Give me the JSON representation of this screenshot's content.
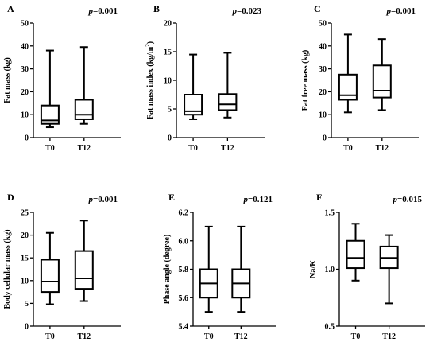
{
  "chart_data": [
    {
      "type": "box",
      "panel": "A",
      "p_prefix": "p",
      "p_value": "=0.001",
      "ylabel": "Fat mass (kg)",
      "ylim": [
        0,
        50
      ],
      "yticks": [
        0,
        10,
        20,
        30,
        40,
        50
      ],
      "ytick_labels": [
        "0",
        "10",
        "20",
        "30",
        "40",
        "50"
      ],
      "categories": [
        "T0",
        "T12"
      ],
      "boxes": [
        {
          "min": 4.5,
          "q1": 6.0,
          "median": 7.5,
          "q3": 14.0,
          "max": 38.0
        },
        {
          "min": 6.0,
          "q1": 8.0,
          "median": 10.0,
          "q3": 16.5,
          "max": 39.5
        }
      ]
    },
    {
      "type": "box",
      "panel": "B",
      "p_prefix": "p",
      "p_value": "=0.023",
      "ylabel": "Fat mass index (kg/m",
      "ylabel_sup": "2",
      "ylabel_close": ")",
      "ylim": [
        0,
        20
      ],
      "yticks": [
        0,
        5,
        10,
        15,
        20
      ],
      "ytick_labels": [
        "0",
        "5",
        "10",
        "15",
        "20"
      ],
      "categories": [
        "T0",
        "T12"
      ],
      "boxes": [
        {
          "min": 3.2,
          "q1": 4.0,
          "median": 4.6,
          "q3": 7.5,
          "max": 14.5
        },
        {
          "min": 3.5,
          "q1": 4.8,
          "median": 5.8,
          "q3": 7.6,
          "max": 14.8
        }
      ]
    },
    {
      "type": "box",
      "panel": "C",
      "p_prefix": "p",
      "p_value": "=0.001",
      "ylabel": "Fat free mass (kg)",
      "ylim": [
        0,
        50
      ],
      "yticks": [
        0,
        10,
        20,
        30,
        40,
        50
      ],
      "ytick_labels": [
        "0",
        "10",
        "20",
        "30",
        "40",
        "50"
      ],
      "categories": [
        "T0",
        "T12"
      ],
      "boxes": [
        {
          "min": 11.0,
          "q1": 16.5,
          "median": 18.5,
          "q3": 27.5,
          "max": 45.0
        },
        {
          "min": 12.0,
          "q1": 17.5,
          "median": 20.5,
          "q3": 31.5,
          "max": 43.0
        }
      ]
    },
    {
      "type": "box",
      "panel": "D",
      "p_prefix": "p",
      "p_value": "=0.001",
      "ylabel": "Body cellular mass (kg)",
      "ylim": [
        0,
        25
      ],
      "yticks": [
        0,
        5,
        10,
        15,
        20,
        25
      ],
      "ytick_labels": [
        "0",
        "5",
        "10",
        "15",
        "20",
        "25"
      ],
      "categories": [
        "T0",
        "T12"
      ],
      "boxes": [
        {
          "min": 4.8,
          "q1": 7.5,
          "median": 9.8,
          "q3": 14.6,
          "max": 20.5
        },
        {
          "min": 5.5,
          "q1": 8.2,
          "median": 10.5,
          "q3": 16.5,
          "max": 23.2
        }
      ]
    },
    {
      "type": "box",
      "panel": "E",
      "p_prefix": "p",
      "p_value": "=0.121",
      "ylabel": "Phase angle (degree)",
      "ylim": [
        5.4,
        6.2
      ],
      "yticks": [
        5.4,
        5.6,
        5.8,
        6.0,
        6.2
      ],
      "ytick_labels": [
        "5.4",
        "5.6",
        "5.8",
        "6.0",
        "6.2"
      ],
      "categories": [
        "T0",
        "T12"
      ],
      "boxes": [
        {
          "min": 5.5,
          "q1": 5.6,
          "median": 5.7,
          "q3": 5.8,
          "max": 6.1
        },
        {
          "min": 5.5,
          "q1": 5.6,
          "median": 5.7,
          "q3": 5.8,
          "max": 6.1
        }
      ]
    },
    {
      "type": "box",
      "panel": "F",
      "p_prefix": "p",
      "p_value": "=0.015",
      "ylabel": "Na/K",
      "ylim": [
        0.5,
        1.5
      ],
      "yticks": [
        0.5,
        1.0,
        1.5
      ],
      "ytick_labels": [
        "0.5",
        "1.0",
        "1.5"
      ],
      "categories": [
        "T0",
        "T12"
      ],
      "boxes": [
        {
          "min": 0.9,
          "q1": 1.01,
          "median": 1.1,
          "q3": 1.25,
          "max": 1.4
        },
        {
          "min": 0.7,
          "q1": 1.01,
          "median": 1.1,
          "q3": 1.2,
          "max": 1.3
        }
      ]
    }
  ]
}
